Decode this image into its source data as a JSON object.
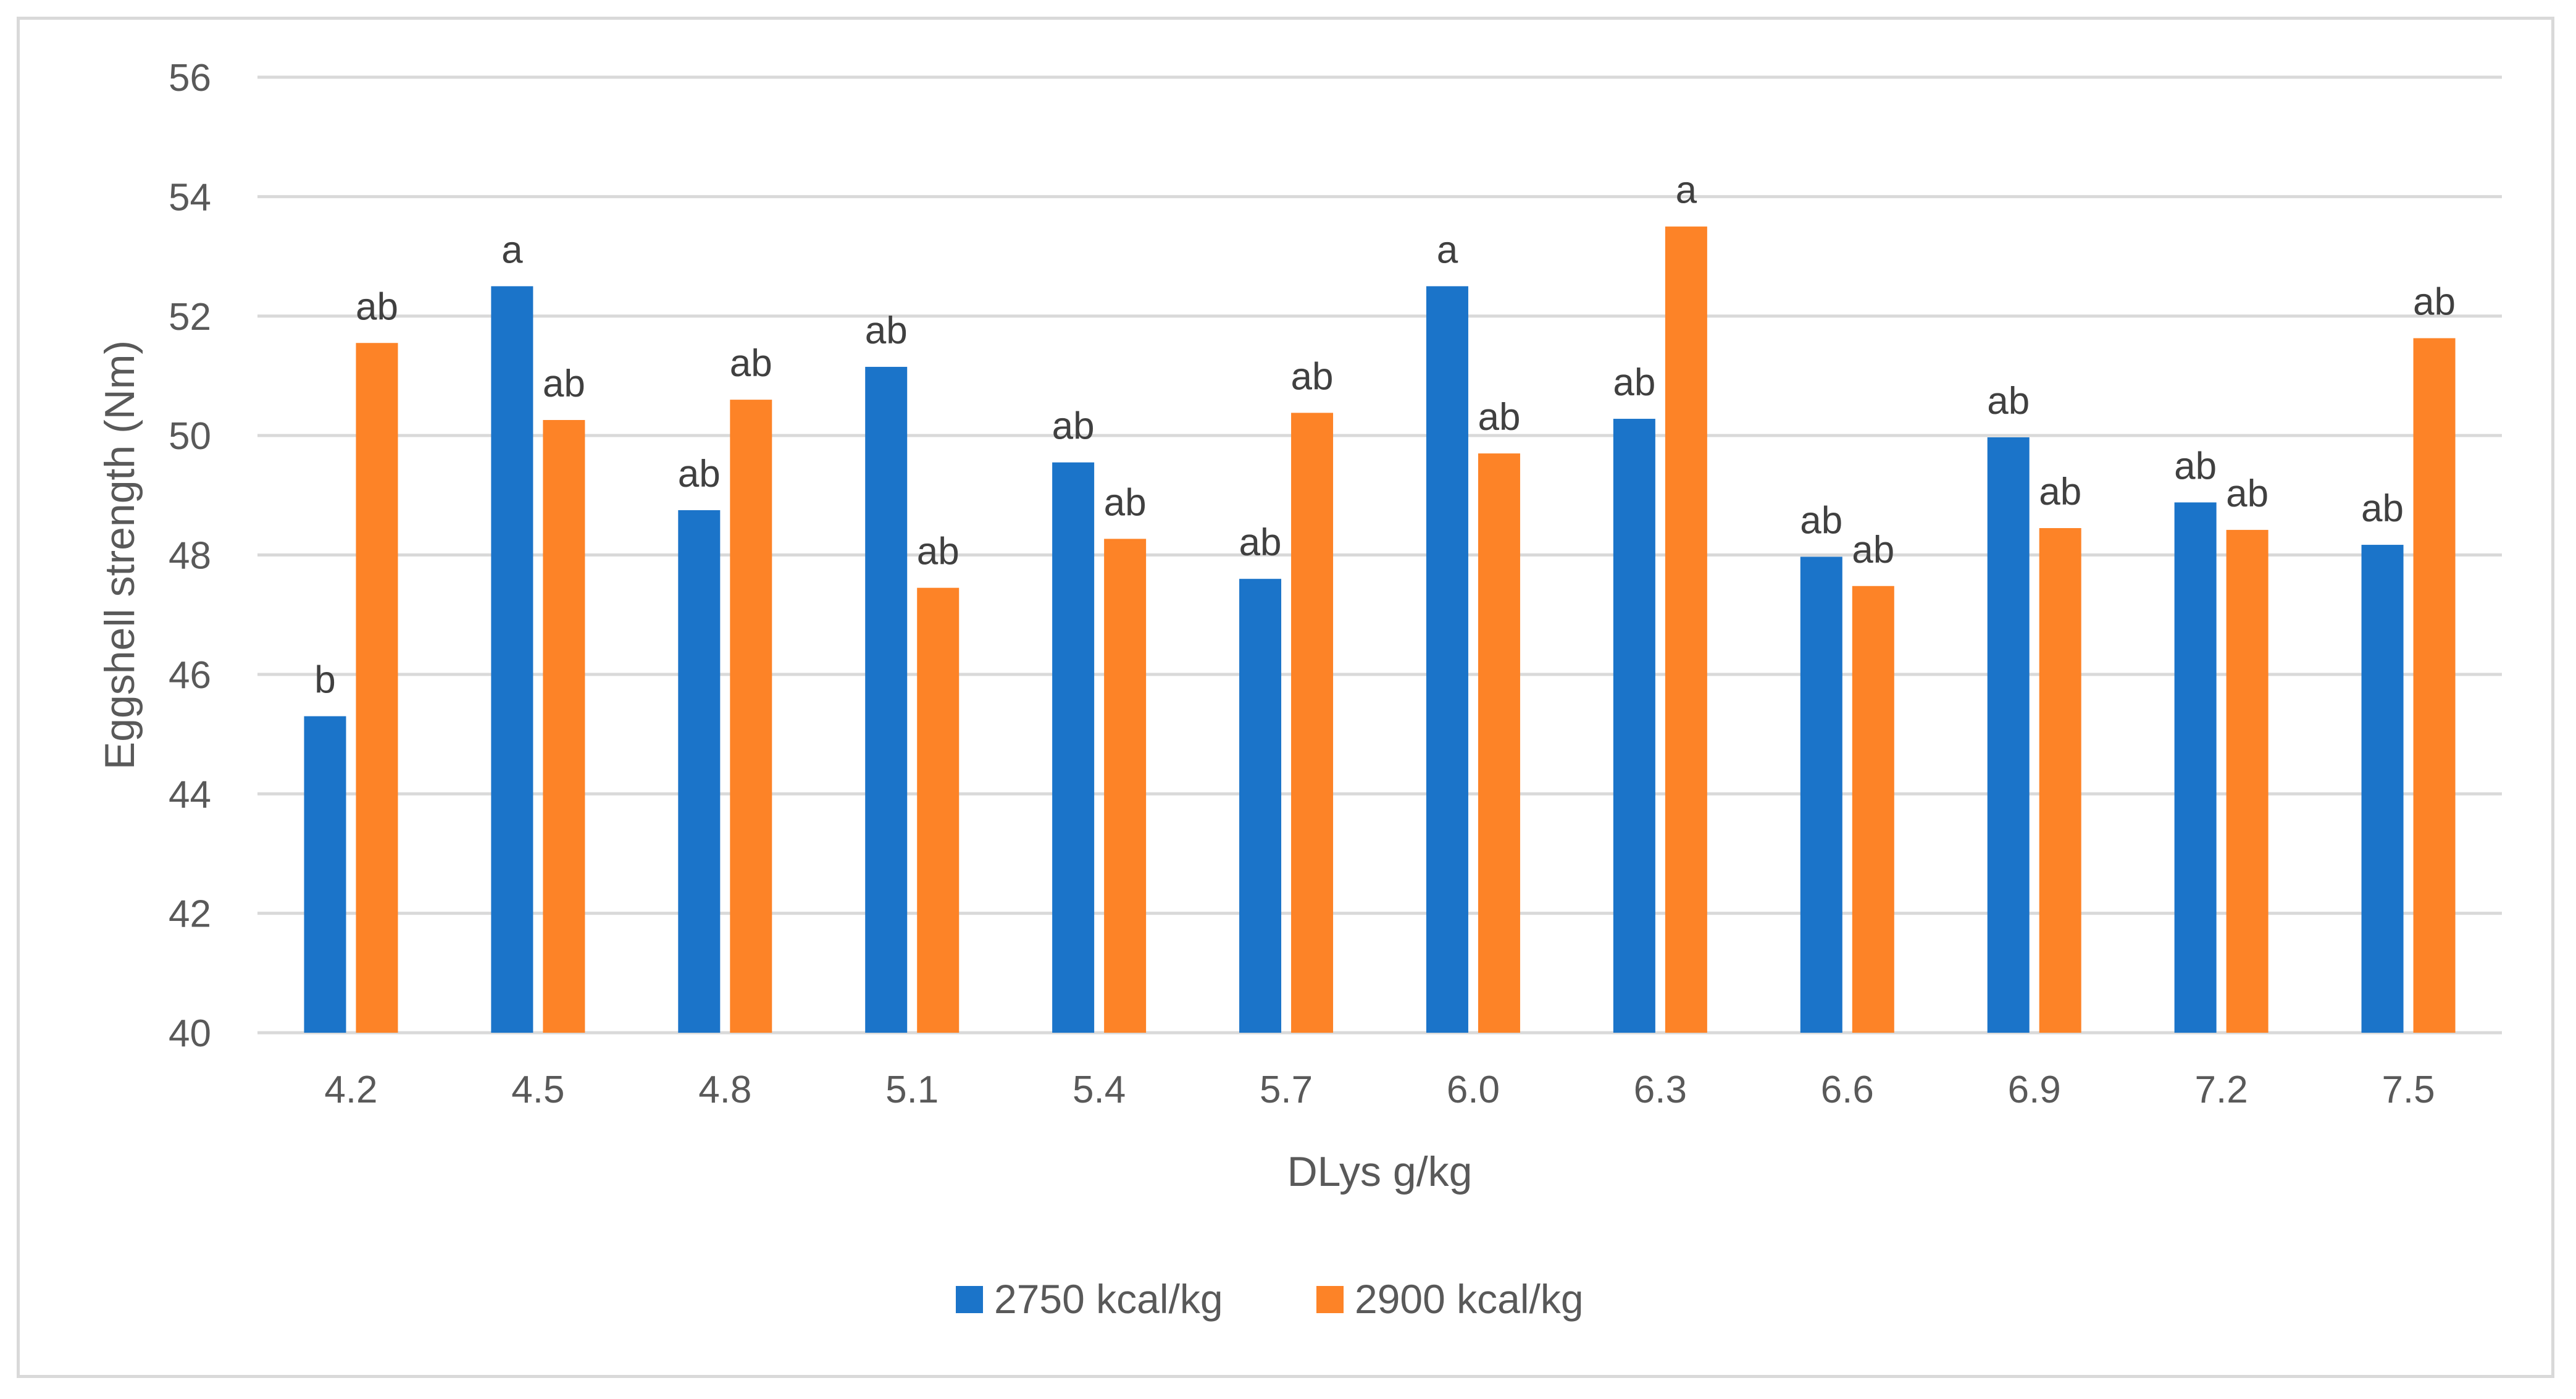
{
  "chart_data": {
    "type": "bar",
    "title": "",
    "xlabel": "DLys g/kg",
    "ylabel": "Eggshell strength (Nm)",
    "ylim": [
      40,
      56
    ],
    "yticks": [
      40,
      42,
      44,
      46,
      48,
      50,
      52,
      54,
      56
    ],
    "grid": true,
    "legend_position": "bottom",
    "categories": [
      "4.2",
      "4.5",
      "4.8",
      "5.1",
      "5.4",
      "5.7",
      "6.0",
      "6.3",
      "6.6",
      "6.9",
      "7.2",
      "7.5"
    ],
    "series": [
      {
        "name": "2750 kcal/kg",
        "color": "#1b74c9",
        "values": [
          45.3,
          52.5,
          48.75,
          51.15,
          49.55,
          47.6,
          52.5,
          50.28,
          47.97,
          49.97,
          48.88,
          48.17
        ],
        "labels": [
          "b",
          "a",
          "ab",
          "ab",
          "ab",
          "ab",
          "a",
          "ab",
          "ab",
          "ab",
          "ab",
          "ab"
        ]
      },
      {
        "name": "2900 kcal/kg",
        "color": "#fd8327",
        "values": [
          51.55,
          50.26,
          50.6,
          47.45,
          48.27,
          50.38,
          49.7,
          53.5,
          47.48,
          48.45,
          48.42,
          51.63
        ],
        "labels": [
          "ab",
          "ab",
          "ab",
          "ab",
          "ab",
          "ab",
          "ab",
          "a",
          "ab",
          "ab",
          "ab",
          "ab"
        ]
      }
    ]
  }
}
